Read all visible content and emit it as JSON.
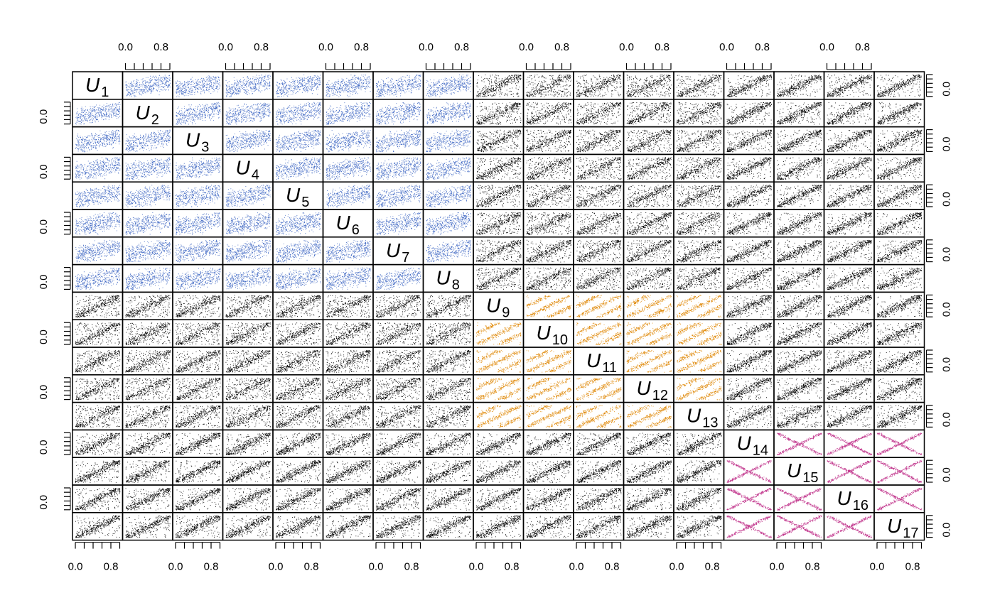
{
  "chart_data": {
    "type": "scatter",
    "subtype": "scatterplot-matrix",
    "title": "",
    "n_variables": 17,
    "variables": [
      {
        "symbol": "U",
        "index": "1"
      },
      {
        "symbol": "U",
        "index": "2"
      },
      {
        "symbol": "U",
        "index": "3"
      },
      {
        "symbol": "U",
        "index": "4"
      },
      {
        "symbol": "U",
        "index": "5"
      },
      {
        "symbol": "U",
        "index": "6"
      },
      {
        "symbol": "U",
        "index": "7"
      },
      {
        "symbol": "U",
        "index": "8"
      },
      {
        "symbol": "U",
        "index": "9"
      },
      {
        "symbol": "U",
        "index": "10"
      },
      {
        "symbol": "U",
        "index": "11"
      },
      {
        "symbol": "U",
        "index": "12"
      },
      {
        "symbol": "U",
        "index": "13"
      },
      {
        "symbol": "U",
        "index": "14"
      },
      {
        "symbol": "U",
        "index": "15"
      },
      {
        "symbol": "U",
        "index": "16"
      },
      {
        "symbol": "U",
        "index": "17"
      }
    ],
    "axis_range": [
      0,
      1
    ],
    "ticks": [
      0.0,
      0.2,
      0.4,
      0.6,
      0.8,
      1.0
    ],
    "tick_labels": [
      "0.0",
      "0.8"
    ],
    "groups": [
      {
        "variables": [
          1,
          2,
          3,
          4,
          5,
          6,
          7,
          8
        ],
        "color": "#4169C4",
        "dependence": "weak positive"
      },
      {
        "variables": [
          9,
          10,
          11,
          12,
          13
        ],
        "color": "#E08A0B",
        "dependence": "positive, banded"
      },
      {
        "variables": [
          14,
          15,
          16,
          17
        ],
        "color": "#C2388E",
        "dependence": "X-shaped (crossed)"
      }
    ],
    "off_group_color": "#000000",
    "points_per_panel": 1000,
    "grid": false,
    "legend": "none"
  }
}
